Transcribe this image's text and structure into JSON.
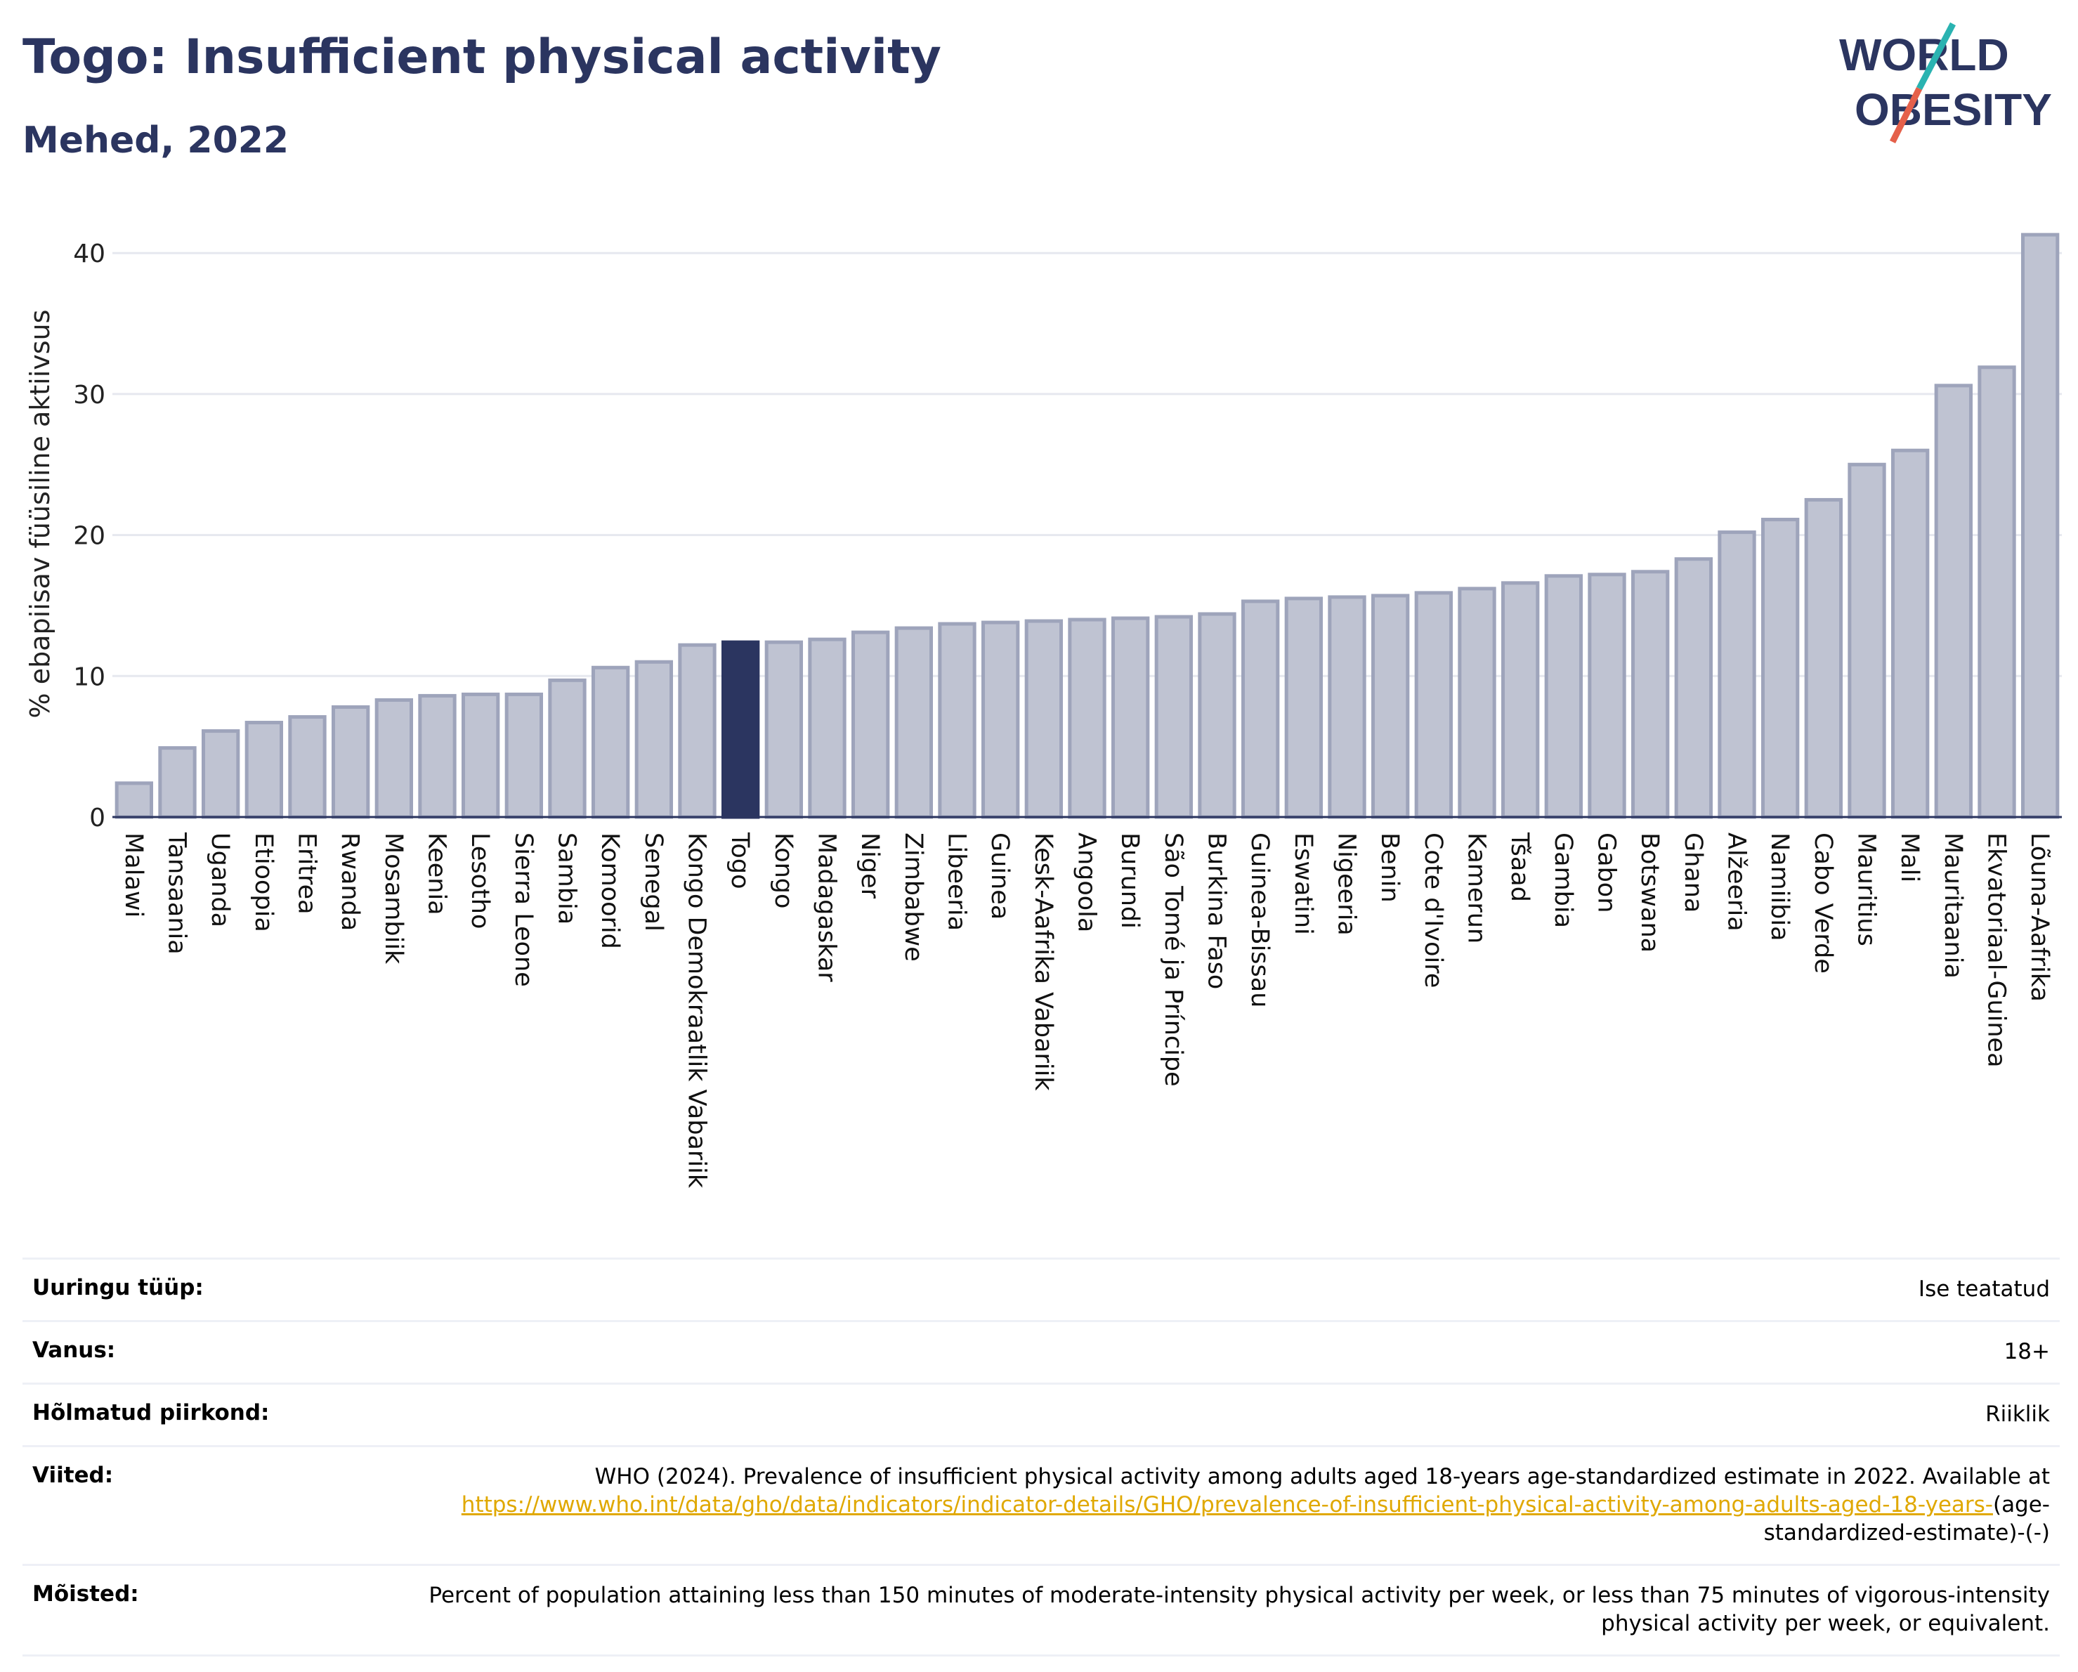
{
  "header": {
    "title": "Togo: Insufficient physical activity",
    "subtitle": "Mehed, 2022"
  },
  "logo": {
    "line1": "WORLD",
    "line2": "OBESITY",
    "colors": {
      "text": "#2b3560",
      "teal": "#2ab3b1",
      "coral": "#e5604a"
    }
  },
  "chart_data": {
    "type": "bar",
    "ylabel": "% ebapiisav füüsiline aktiivsus",
    "xlabel": "",
    "ylim": [
      0,
      43
    ],
    "yticks": [
      0,
      10,
      20,
      30,
      40
    ],
    "grid": true,
    "highlight": "Togo",
    "colors": {
      "bar": "#bfc3d2",
      "bar_border": "#9ea4bb",
      "highlight": "#2b3560"
    },
    "categories": [
      "Malawi",
      "Tansaania",
      "Uganda",
      "Etioopia",
      "Eritrea",
      "Rwanda",
      "Mosambiik",
      "Keenia",
      "Lesotho",
      "Sierra Leone",
      "Sambia",
      "Komoorid",
      "Senegal",
      "Kongo Demokraatlik Vabariik",
      "Togo",
      "Kongo",
      "Madagaskar",
      "Niger",
      "Zimbabwe",
      "Libeeria",
      "Guinea",
      "Kesk-Aafrika Vabariik",
      "Angoola",
      "Burundi",
      "São Tomé ja Príncipe",
      "Burkina Faso",
      "Guinea-Bissau",
      "Eswatini",
      "Nigeeria",
      "Benin",
      "Cote d'Ivoire",
      "Kamerun",
      "Tšaad",
      "Gambia",
      "Gabon",
      "Botswana",
      "Ghana",
      "Alžeeria",
      "Namiibia",
      "Cabo Verde",
      "Mauritius",
      "Mali",
      "Mauritaania",
      "Ekvatoriaal-Guinea",
      "Lõuna-Aafrika"
    ],
    "values": [
      2.4,
      4.9,
      6.1,
      6.7,
      7.1,
      7.8,
      8.3,
      8.6,
      8.7,
      8.7,
      9.7,
      10.6,
      11.0,
      12.2,
      12.4,
      12.4,
      12.6,
      13.1,
      13.4,
      13.7,
      13.8,
      13.9,
      14.0,
      14.1,
      14.2,
      14.4,
      15.3,
      15.5,
      15.6,
      15.7,
      15.9,
      16.2,
      16.6,
      17.1,
      17.2,
      17.4,
      18.3,
      20.2,
      21.1,
      22.5,
      25.0,
      26.0,
      30.6,
      31.9,
      41.3
    ]
  },
  "info": {
    "survey_type": {
      "label": "Uuringu tüüp:",
      "value": "Ise teatatud"
    },
    "age": {
      "label": "Vanus:",
      "value": "18+"
    },
    "region": {
      "label": "Hõlmatud piirkond:",
      "value": "Riiklik"
    },
    "references": {
      "label": "Viited:",
      "text": "WHO (2024). Prevalence of insufficient physical activity among adults aged 18-years age-standardized estimate in 2022. Available at",
      "link": "https://www.who.int/data/gho/data/indicators/indicator-details/GHO/prevalence-of-insufficient-physical-activity-among-adults-aged-18-years-",
      "suffix": "(age-standardized-estimate)-(-)"
    },
    "definitions": {
      "label": "Mõisted:",
      "value": "Percent of population attaining less than 150 minutes of moderate-intensity physical activity per week, or less than 75 minutes of vigorous-intensity physical activity per week, or equivalent."
    }
  }
}
